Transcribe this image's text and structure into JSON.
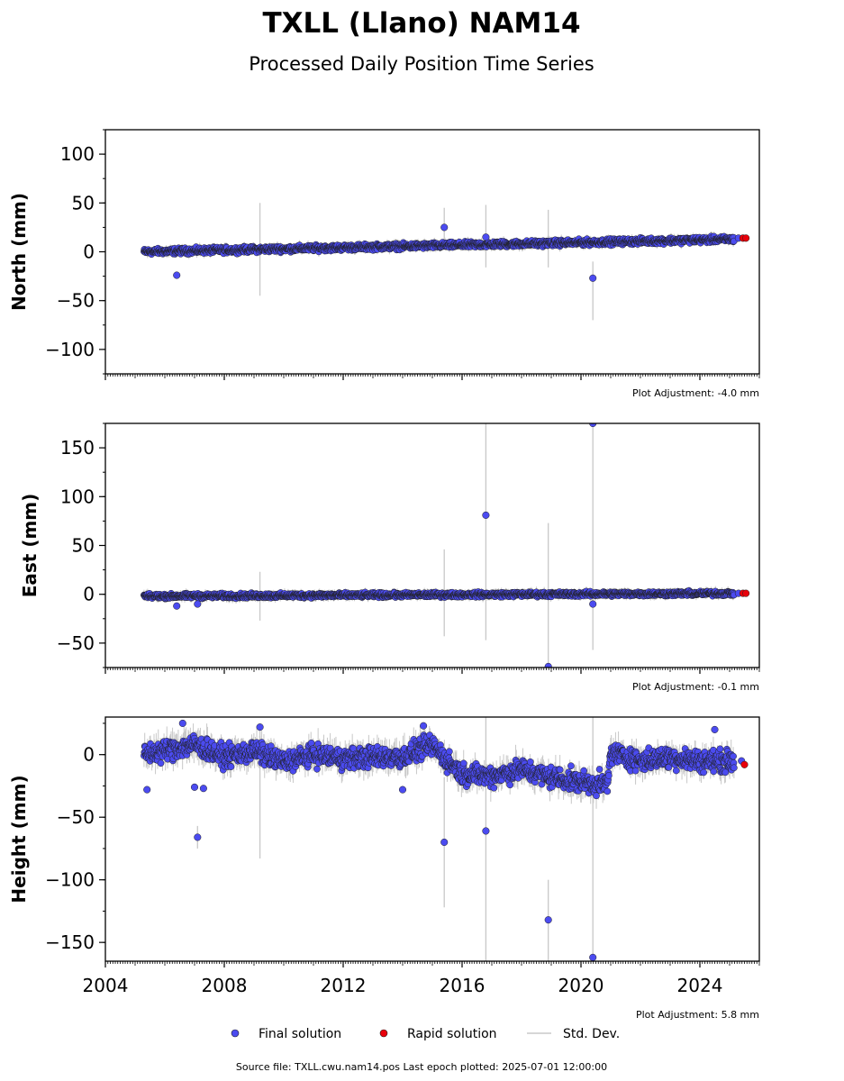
{
  "title": "TXLL (Llano) NAM14",
  "subtitle": "Processed Daily Position Time Series",
  "footer": "Source file: TXLL.cwu.nam14.pos  Last epoch plotted: 2025-07-01 12:00:00",
  "legend": {
    "final": "Final solution",
    "rapid": "Rapid solution",
    "std": "Std. Dev."
  },
  "colors": {
    "final": "#4b4bf0",
    "rapid": "#e8000b",
    "std": "#c8c8c8",
    "edge": "#202020"
  },
  "chart_data": [
    {
      "type": "scatter",
      "panel": "north",
      "ylabel": "North (mm)",
      "ylim": [
        -125,
        125
      ],
      "yticks": [
        -100,
        -50,
        0,
        50,
        100
      ],
      "yticklabels": [
        "−100",
        "−50",
        "0",
        "50",
        "100"
      ],
      "xlim": [
        2004,
        2026
      ],
      "adjustment": "Plot Adjustment: -4.0 mm",
      "trend": [
        [
          2005.3,
          0
        ],
        [
          2025.3,
          13
        ]
      ],
      "noise": 2.5,
      "errorbar": 4,
      "outliers": [
        {
          "x": 2006.4,
          "y": -24
        },
        {
          "x": 2015.4,
          "y": 25
        },
        {
          "x": 2016.8,
          "y": 15
        },
        {
          "x": 2020.4,
          "y": -27
        }
      ],
      "errorbars": [
        {
          "x": 2009.2,
          "y1": -45,
          "y2": 50
        },
        {
          "x": 2015.4,
          "y1": 5,
          "y2": 45
        },
        {
          "x": 2016.8,
          "y1": -16,
          "y2": 48
        },
        {
          "x": 2018.9,
          "y1": -16,
          "y2": 43
        },
        {
          "x": 2020.4,
          "y1": -70,
          "y2": -10
        }
      ],
      "rapid": [
        {
          "x": 2025.45,
          "y": 14
        },
        {
          "x": 2025.55,
          "y": 14
        }
      ],
      "final_tail": [
        {
          "x": 2025.3,
          "y": 14
        }
      ]
    },
    {
      "type": "scatter",
      "panel": "east",
      "ylabel": "East (mm)",
      "ylim": [
        -75,
        175
      ],
      "yticks": [
        -50,
        0,
        50,
        100,
        150
      ],
      "yticklabels": [
        "−50",
        "0",
        "50",
        "100",
        "150"
      ],
      "xlim": [
        2004,
        2026
      ],
      "adjustment": "Plot Adjustment: -0.1 mm",
      "trend": [
        [
          2005.3,
          -2
        ],
        [
          2025.3,
          1
        ]
      ],
      "noise": 2,
      "errorbar": 4,
      "outliers": [
        {
          "x": 2006.4,
          "y": -12
        },
        {
          "x": 2007.1,
          "y": -10
        },
        {
          "x": 2016.8,
          "y": 81
        },
        {
          "x": 2018.9,
          "y": -74
        },
        {
          "x": 2020.4,
          "y": 175
        },
        {
          "x": 2020.4,
          "y": -10
        }
      ],
      "errorbars": [
        {
          "x": 2009.2,
          "y1": -27,
          "y2": 23
        },
        {
          "x": 2015.4,
          "y1": -43,
          "y2": 46
        },
        {
          "x": 2016.8,
          "y1": -47,
          "y2": 175
        },
        {
          "x": 2018.9,
          "y1": -75,
          "y2": 73
        },
        {
          "x": 2020.4,
          "y1": -57,
          "y2": 175
        }
      ],
      "rapid": [
        {
          "x": 2025.45,
          "y": 1
        },
        {
          "x": 2025.55,
          "y": 1
        }
      ],
      "final_tail": [
        {
          "x": 2025.3,
          "y": 1
        }
      ]
    },
    {
      "type": "scatter",
      "panel": "height",
      "ylabel": "Height (mm)",
      "ylim": [
        -165,
        30
      ],
      "yticks": [
        -150,
        -100,
        -50,
        0
      ],
      "yticklabels": [
        "−150",
        "−100",
        "−50",
        "0"
      ],
      "xlim": [
        2004,
        2026
      ],
      "xticks": [
        2004,
        2008,
        2012,
        2016,
        2020,
        2024
      ],
      "xticklabels": [
        "2004",
        "2008",
        "2012",
        "2016",
        "2020",
        "2024"
      ],
      "adjustment": "Plot Adjustment: 5.8 mm",
      "segments": [
        [
          2005.3,
          0
        ],
        [
          2006.4,
          5
        ],
        [
          2007.0,
          8
        ],
        [
          2008.0,
          -2
        ],
        [
          2009.0,
          3
        ],
        [
          2010.0,
          -6
        ],
        [
          2011.0,
          0
        ],
        [
          2012.0,
          -3
        ],
        [
          2013.0,
          -2
        ],
        [
          2014.0,
          -2
        ],
        [
          2015.0,
          8
        ],
        [
          2015.5,
          -5
        ],
        [
          2016.0,
          -15
        ],
        [
          2017.0,
          -17
        ],
        [
          2018.0,
          -12
        ],
        [
          2019.0,
          -18
        ],
        [
          2020.0,
          -22
        ],
        [
          2020.9,
          -24
        ],
        [
          2021.0,
          2
        ],
        [
          2022.0,
          -5
        ],
        [
          2023.0,
          -2
        ],
        [
          2024.0,
          -5
        ],
        [
          2025.3,
          -5
        ]
      ],
      "noise": 7,
      "errorbar": 9,
      "outliers": [
        {
          "x": 2005.4,
          "y": -28
        },
        {
          "x": 2006.6,
          "y": 25
        },
        {
          "x": 2007.0,
          "y": -26
        },
        {
          "x": 2007.1,
          "y": -66
        },
        {
          "x": 2007.3,
          "y": -27
        },
        {
          "x": 2009.2,
          "y": 22
        },
        {
          "x": 2014.0,
          "y": -28
        },
        {
          "x": 2014.7,
          "y": 23
        },
        {
          "x": 2015.4,
          "y": -70
        },
        {
          "x": 2016.8,
          "y": -61
        },
        {
          "x": 2018.9,
          "y": -132
        },
        {
          "x": 2020.4,
          "y": -162
        },
        {
          "x": 2024.5,
          "y": 20
        }
      ],
      "errorbars": [
        {
          "x": 2007.1,
          "y1": -75,
          "y2": -57
        },
        {
          "x": 2009.2,
          "y1": -83,
          "y2": 22
        },
        {
          "x": 2015.4,
          "y1": -122,
          "y2": -18
        },
        {
          "x": 2016.8,
          "y1": -165,
          "y2": 30
        },
        {
          "x": 2018.9,
          "y1": -165,
          "y2": -100
        },
        {
          "x": 2020.4,
          "y1": -165,
          "y2": 30
        }
      ],
      "rapid": [
        {
          "x": 2025.5,
          "y": -8
        }
      ],
      "final_tail": [
        {
          "x": 2025.4,
          "y": -5
        }
      ]
    }
  ]
}
